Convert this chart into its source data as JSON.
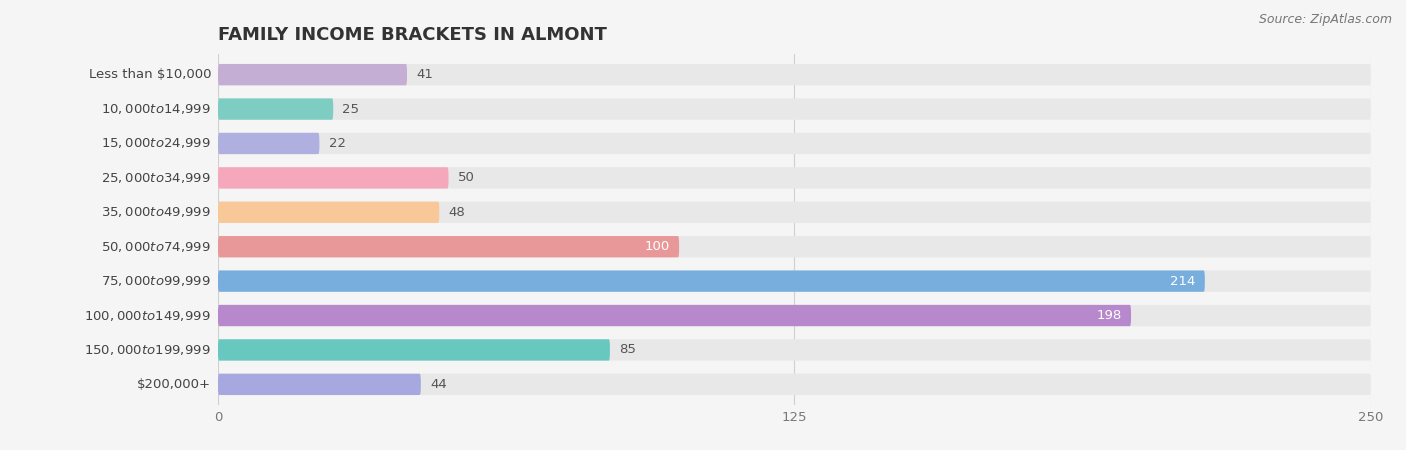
{
  "title": "FAMILY INCOME BRACKETS IN ALMONT",
  "source": "Source: ZipAtlas.com",
  "categories": [
    "Less than $10,000",
    "$10,000 to $14,999",
    "$15,000 to $24,999",
    "$25,000 to $34,999",
    "$35,000 to $49,999",
    "$50,000 to $74,999",
    "$75,000 to $99,999",
    "$100,000 to $149,999",
    "$150,000 to $199,999",
    "$200,000+"
  ],
  "values": [
    41,
    25,
    22,
    50,
    48,
    100,
    214,
    198,
    85,
    44
  ],
  "bar_colors": [
    "#c4aed4",
    "#7dcdc3",
    "#b0b0e0",
    "#f5a8bc",
    "#f8c898",
    "#e89898",
    "#78aedd",
    "#b888cc",
    "#68c8c0",
    "#a8a8e0"
  ],
  "xlim": [
    0,
    250
  ],
  "xticks": [
    0,
    125,
    250
  ],
  "background_color": "#f5f5f5",
  "bar_bg_color": "#e8e8e8",
  "title_fontsize": 13,
  "label_fontsize": 9.5,
  "value_fontsize": 9.5,
  "value_color_inside": "#ffffff",
  "value_color_outside": "#555555",
  "label_color": "#444444"
}
